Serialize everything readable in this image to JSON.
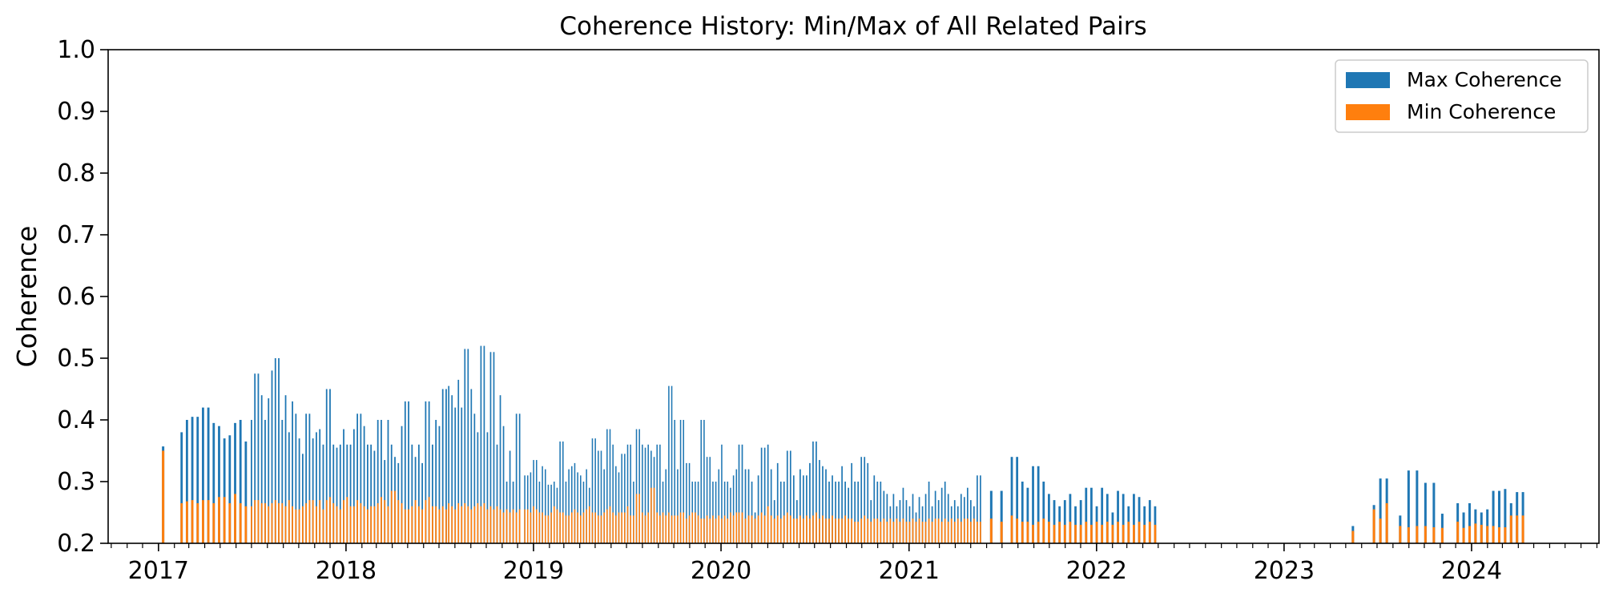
{
  "chart_data": {
    "type": "bar",
    "title": "Coherence History: Min/Max of All Related Pairs",
    "xlabel": "",
    "ylabel": "Coherence",
    "ylim": [
      0.2,
      1.0
    ],
    "xlim": [
      "2016-09-25",
      "2024-09-05"
    ],
    "yticks": [
      "0.2",
      "0.3",
      "0.4",
      "0.5",
      "0.6",
      "0.7",
      "0.8",
      "0.9",
      "1.0"
    ],
    "xticks": [
      {
        "date": "2017-01-01",
        "label": "2017"
      },
      {
        "date": "2018-01-01",
        "label": "2018"
      },
      {
        "date": "2019-01-01",
        "label": "2019"
      },
      {
        "date": "2020-01-01",
        "label": "2020"
      },
      {
        "date": "2021-01-01",
        "label": "2021"
      },
      {
        "date": "2022-01-01",
        "label": "2022"
      },
      {
        "date": "2023-01-01",
        "label": "2023"
      },
      {
        "date": "2024-01-01",
        "label": "2024"
      }
    ],
    "minor_ticks": "monthly",
    "grid": false,
    "legend": "top-right",
    "colors": {
      "max": "#1f77b4",
      "min": "#ff7f0e"
    },
    "series": [
      {
        "name": "Max Coherence",
        "key": "max",
        "color": "#1f77b4"
      },
      {
        "name": "Min Coherence",
        "key": "min",
        "color": "#ff7f0e"
      }
    ],
    "segments": [
      {
        "start": "2017-01-10",
        "end": "2017-01-10",
        "max": [
          0.357
        ],
        "min": [
          0.35
        ]
      },
      {
        "start": "2017-02-15",
        "end": "2017-06-20",
        "max": [
          0.38,
          0.4,
          0.405,
          0.405,
          0.42,
          0.42,
          0.395,
          0.39,
          0.37,
          0.375,
          0.395,
          0.4,
          0.365
        ],
        "min": [
          0.265,
          0.268,
          0.27,
          0.265,
          0.27,
          0.27,
          0.265,
          0.275,
          0.275,
          0.265,
          0.28,
          0.265,
          0.26
        ]
      },
      {
        "start": "2017-07-01",
        "end": "2018-07-15",
        "max": [
          0.4,
          0.475,
          0.475,
          0.44,
          0.4,
          0.435,
          0.48,
          0.5,
          0.5,
          0.4,
          0.44,
          0.38,
          0.43,
          0.41,
          0.37,
          0.345,
          0.41,
          0.41,
          0.37,
          0.38,
          0.385,
          0.36,
          0.45,
          0.45,
          0.36,
          0.355,
          0.36,
          0.385,
          0.36,
          0.36,
          0.385,
          0.41,
          0.41,
          0.39,
          0.36,
          0.36,
          0.35,
          0.4,
          0.4,
          0.335,
          0.4,
          0.36,
          0.34,
          0.33,
          0.39,
          0.43,
          0.43,
          0.36,
          0.34,
          0.36,
          0.33,
          0.43,
          0.43,
          0.36,
          0.4,
          0.39,
          0.45,
          0.45
        ],
        "min": [
          0.26,
          0.27,
          0.27,
          0.265,
          0.265,
          0.26,
          0.265,
          0.27,
          0.265,
          0.265,
          0.26,
          0.27,
          0.26,
          0.255,
          0.255,
          0.26,
          0.265,
          0.27,
          0.27,
          0.26,
          0.27,
          0.255,
          0.27,
          0.275,
          0.265,
          0.26,
          0.255,
          0.27,
          0.275,
          0.26,
          0.26,
          0.27,
          0.265,
          0.26,
          0.255,
          0.26,
          0.26,
          0.265,
          0.275,
          0.27,
          0.26,
          0.285,
          0.285,
          0.27,
          0.265,
          0.255,
          0.255,
          0.26,
          0.27,
          0.26,
          0.255,
          0.27,
          0.275,
          0.26,
          0.26,
          0.255,
          0.26,
          0.255
        ]
      },
      {
        "start": "2018-07-20",
        "end": "2018-12-05",
        "max": [
          0.455,
          0.44,
          0.42,
          0.465,
          0.42,
          0.515,
          0.515,
          0.45,
          0.41,
          0.38,
          0.52,
          0.52,
          0.38,
          0.51,
          0.51,
          0.36,
          0.44,
          0.39,
          0.3,
          0.35,
          0.3,
          0.41,
          0.41
        ],
        "min": [
          0.265,
          0.26,
          0.255,
          0.265,
          0.26,
          0.265,
          0.26,
          0.255,
          0.26,
          0.265,
          0.26,
          0.265,
          0.255,
          0.26,
          0.255,
          0.26,
          0.255,
          0.25,
          0.255,
          0.25,
          0.255,
          0.25,
          0.255
        ]
      },
      {
        "start": "2018-12-15",
        "end": "2020-01-31",
        "max": [
          0.31,
          0.31,
          0.315,
          0.335,
          0.335,
          0.3,
          0.325,
          0.32,
          0.295,
          0.295,
          0.3,
          0.29,
          0.365,
          0.365,
          0.3,
          0.32,
          0.325,
          0.33,
          0.315,
          0.31,
          0.3,
          0.32,
          0.29,
          0.37,
          0.37,
          0.35,
          0.35,
          0.32,
          0.385,
          0.385,
          0.36,
          0.325,
          0.315,
          0.345,
          0.345,
          0.36,
          0.36,
          0.3,
          0.385,
          0.385,
          0.36,
          0.355,
          0.36,
          0.35,
          0.34,
          0.36,
          0.36,
          0.3,
          0.32,
          0.455,
          0.455,
          0.4,
          0.32,
          0.4,
          0.4,
          0.33,
          0.33,
          0.3,
          0.3,
          0.3,
          0.4,
          0.4,
          0.34,
          0.34,
          0.3,
          0.3,
          0.32,
          0.36,
          0.3,
          0.3,
          0.29,
          0.31,
          0.32
        ],
        "min": [
          0.255,
          0.255,
          0.25,
          0.26,
          0.255,
          0.25,
          0.25,
          0.245,
          0.245,
          0.25,
          0.26,
          0.255,
          0.25,
          0.25,
          0.245,
          0.245,
          0.25,
          0.255,
          0.25,
          0.245,
          0.25,
          0.255,
          0.26,
          0.25,
          0.25,
          0.245,
          0.245,
          0.25,
          0.255,
          0.26,
          0.25,
          0.245,
          0.25,
          0.25,
          0.25,
          0.26,
          0.245,
          0.245,
          0.28,
          0.28,
          0.25,
          0.245,
          0.25,
          0.29,
          0.29,
          0.25,
          0.245,
          0.25,
          0.245,
          0.25,
          0.245,
          0.245,
          0.245,
          0.25,
          0.25,
          0.24,
          0.245,
          0.25,
          0.25,
          0.245,
          0.24,
          0.24,
          0.245,
          0.24,
          0.245,
          0.24,
          0.245,
          0.24,
          0.245,
          0.24,
          0.25,
          0.245,
          0.25
        ]
      },
      {
        "start": "2020-02-05",
        "end": "2021-05-20",
        "max": [
          0.36,
          0.36,
          0.32,
          0.32,
          0.3,
          0.25,
          0.31,
          0.355,
          0.355,
          0.36,
          0.32,
          0.27,
          0.33,
          0.3,
          0.3,
          0.35,
          0.35,
          0.31,
          0.27,
          0.32,
          0.31,
          0.31,
          0.33,
          0.365,
          0.365,
          0.335,
          0.325,
          0.32,
          0.3,
          0.31,
          0.3,
          0.3,
          0.325,
          0.3,
          0.29,
          0.33,
          0.3,
          0.3,
          0.34,
          0.34,
          0.33,
          0.27,
          0.31,
          0.3,
          0.3,
          0.285,
          0.28,
          0.26,
          0.28,
          0.26,
          0.27,
          0.29,
          0.27,
          0.26,
          0.28,
          0.25,
          0.275,
          0.26,
          0.28,
          0.3,
          0.26,
          0.285,
          0.27,
          0.29,
          0.3,
          0.28,
          0.26,
          0.27,
          0.26,
          0.28,
          0.275,
          0.29,
          0.27,
          0.26,
          0.31,
          0.31
        ],
        "min": [
          0.25,
          0.25,
          0.24,
          0.245,
          0.245,
          0.24,
          0.245,
          0.25,
          0.245,
          0.26,
          0.245,
          0.24,
          0.245,
          0.24,
          0.245,
          0.25,
          0.245,
          0.24,
          0.24,
          0.245,
          0.24,
          0.245,
          0.24,
          0.245,
          0.25,
          0.24,
          0.245,
          0.24,
          0.24,
          0.245,
          0.24,
          0.24,
          0.24,
          0.245,
          0.24,
          0.24,
          0.235,
          0.235,
          0.24,
          0.245,
          0.24,
          0.235,
          0.24,
          0.24,
          0.235,
          0.24,
          0.235,
          0.24,
          0.235,
          0.24,
          0.235,
          0.24,
          0.235,
          0.235,
          0.24,
          0.235,
          0.24,
          0.235,
          0.235,
          0.24,
          0.235,
          0.24,
          0.24,
          0.235,
          0.24,
          0.235,
          0.24,
          0.235,
          0.24,
          0.235,
          0.24,
          0.24,
          0.235,
          0.24,
          0.235,
          0.235
        ]
      },
      {
        "start": "2021-06-10",
        "end": "2021-06-30",
        "max": [
          0.285,
          0.285
        ],
        "min": [
          0.24,
          0.235
        ]
      },
      {
        "start": "2021-07-20",
        "end": "2022-04-25",
        "max": [
          0.34,
          0.34,
          0.3,
          0.29,
          0.325,
          0.325,
          0.3,
          0.28,
          0.27,
          0.26,
          0.27,
          0.28,
          0.26,
          0.27,
          0.29,
          0.29,
          0.26,
          0.29,
          0.28,
          0.25,
          0.285,
          0.28,
          0.26,
          0.28,
          0.275,
          0.26,
          0.27,
          0.26
        ],
        "min": [
          0.245,
          0.24,
          0.235,
          0.235,
          0.23,
          0.235,
          0.24,
          0.235,
          0.23,
          0.235,
          0.23,
          0.235,
          0.23,
          0.23,
          0.235,
          0.23,
          0.235,
          0.23,
          0.235,
          0.23,
          0.235,
          0.23,
          0.235,
          0.23,
          0.235,
          0.23,
          0.235,
          0.23
        ]
      },
      {
        "start": "2023-05-15",
        "end": "2023-05-15",
        "max": [
          0.228
        ],
        "min": [
          0.22
        ]
      },
      {
        "start": "2023-06-25",
        "end": "2023-07-20",
        "max": [
          0.262,
          0.305,
          0.305
        ],
        "min": [
          0.255,
          0.24,
          0.265
        ]
      },
      {
        "start": "2023-08-15",
        "end": "2023-11-05",
        "max": [
          0.245,
          0.318,
          0.318,
          0.298,
          0.298,
          0.248
        ],
        "min": [
          0.228,
          0.226,
          0.228,
          0.228,
          0.226,
          0.225
        ]
      },
      {
        "start": "2023-12-05",
        "end": "2024-04-10",
        "max": [
          0.265,
          0.25,
          0.265,
          0.255,
          0.25,
          0.255,
          0.285,
          0.285,
          0.288,
          0.265,
          0.283,
          0.283
        ],
        "min": [
          0.235,
          0.225,
          0.228,
          0.232,
          0.23,
          0.228,
          0.228,
          0.226,
          0.226,
          0.245,
          0.245,
          0.245
        ]
      }
    ]
  }
}
